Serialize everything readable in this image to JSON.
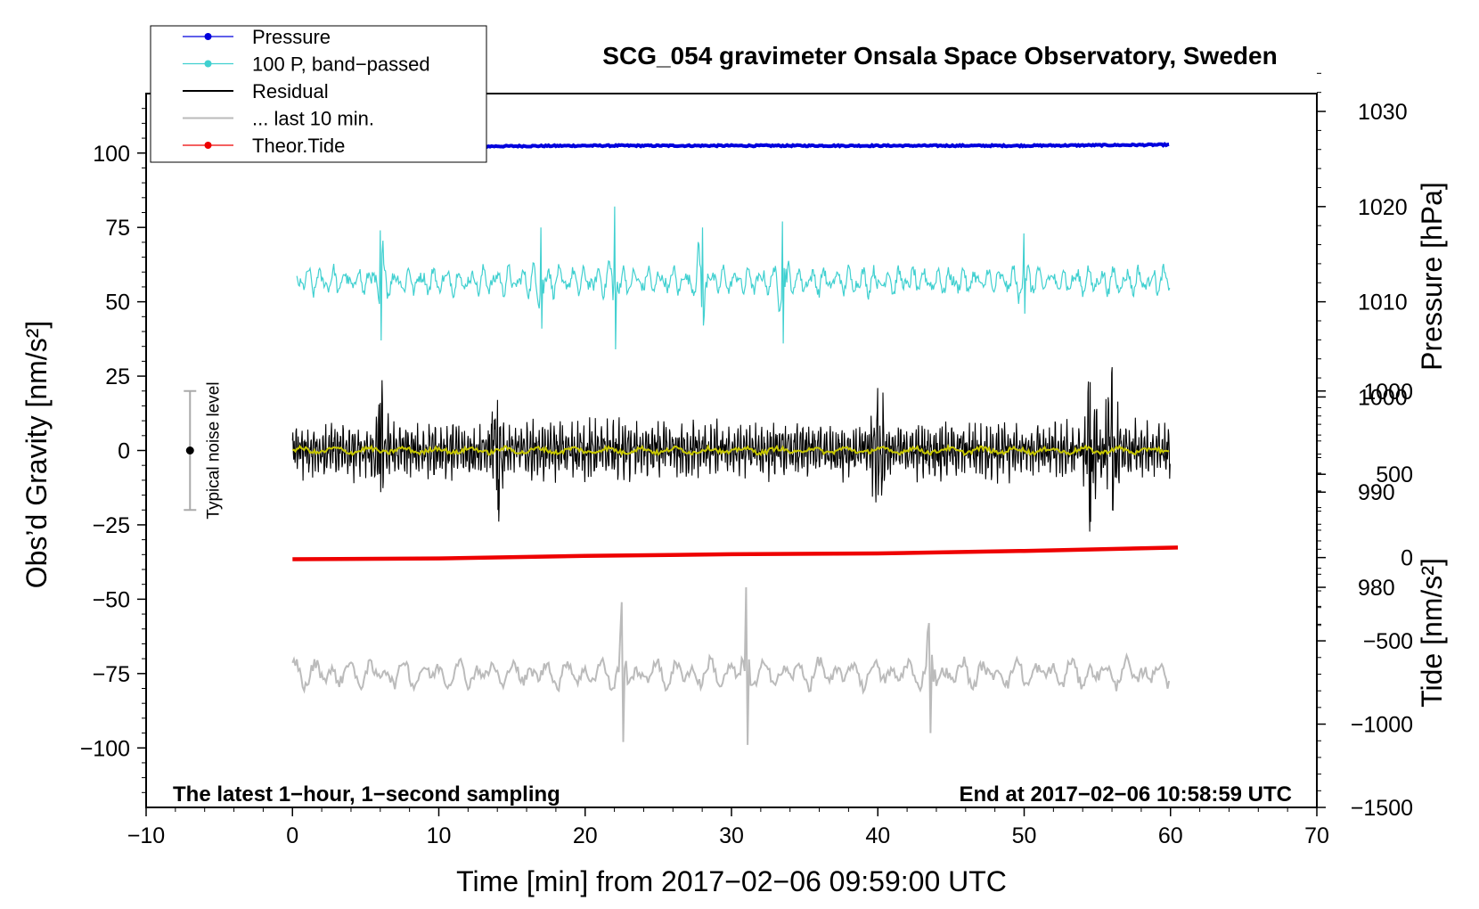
{
  "chart_data": {
    "type": "line",
    "title": "SCG_054 gravimeter Onsala Space Observatory, Sweden",
    "xlabel": "Time [min] from 2017−02−06 09:59:00 UTC",
    "ylabel_left": "Obs’d Gravity [nm/s²]",
    "ylabel_right_pressure": "Pressure [hPa]",
    "ylabel_right_tide": "Tide [nm/s²]",
    "xlim": [
      -10,
      70
    ],
    "ylim_left": [
      -120,
      120
    ],
    "x_ticks": [
      -10,
      0,
      10,
      20,
      30,
      40,
      50,
      60,
      70
    ],
    "x_tick_labels": [
      "−10",
      "0",
      "10",
      "20",
      "30",
      "40",
      "50",
      "60",
      "70"
    ],
    "y_left_ticks": [
      100,
      75,
      50,
      25,
      0,
      -25,
      -50,
      -75,
      -100
    ],
    "y_left_tick_labels": [
      "100",
      "75",
      "50",
      "25",
      "0",
      "−25",
      "−50",
      "−75",
      "−100"
    ],
    "pressure_axis": {
      "ticks": [
        1030,
        1020,
        1010,
        1000,
        990,
        980
      ],
      "tick_labels": [
        "1030",
        "1020",
        "1010",
        "1000",
        "990",
        "980"
      ],
      "range_hPa": [
        975,
        1035
      ],
      "maps_to_gravity": [
        -62,
        130
      ]
    },
    "tide_axis": {
      "ticks": [
        1000,
        500,
        0,
        -500,
        -1000,
        -1500
      ],
      "tick_labels": [
        "1000",
        "500",
        "0",
        "−500",
        "−1000",
        "−1500"
      ],
      "range": [
        -1500,
        1000
      ],
      "maps_to_gravity": [
        -120,
        20
      ]
    },
    "legend": [
      {
        "label": "Pressure",
        "color": "#0000dd",
        "marker": "dot"
      },
      {
        "label": "100 P, band−passed",
        "color": "#40d0d0",
        "marker": "dot"
      },
      {
        "label": "Residual",
        "color": "#000000",
        "marker": "none"
      },
      {
        "label": "... last 10 min.",
        "color": "#bbbbbb",
        "marker": "none"
      },
      {
        "label": "Theor.Tide",
        "color": "#ee0000",
        "marker": "dot"
      }
    ],
    "noise_level": {
      "label": "Typical noise level",
      "x": -7,
      "center": 0,
      "half_range": 20
    },
    "series": [
      {
        "name": "Pressure",
        "axis": "pressure",
        "color": "#0000dd",
        "x": [
          0,
          5,
          10,
          20,
          30,
          40,
          50,
          60
        ],
        "values": [
          1026.2,
          1026.2,
          1026.3,
          1026.4,
          1026.4,
          1026.4,
          1026.4,
          1026.5
        ]
      },
      {
        "name": "100 P, band-passed",
        "axis": "gravity",
        "color": "#40d0d0",
        "x_start": 0.3,
        "x_end": 60,
        "offset": 57,
        "amplitude": 5,
        "bursts": [
          {
            "x": 6,
            "peak": 74,
            "trough": 37
          },
          {
            "x": 17,
            "peak": 75,
            "trough": 41
          },
          {
            "x": 22,
            "peak": 82,
            "trough": 34
          },
          {
            "x": 28,
            "peak": 75,
            "trough": 42
          },
          {
            "x": 33.5,
            "peak": 77,
            "trough": 36
          },
          {
            "x": 50,
            "peak": 73,
            "trough": 46
          }
        ]
      },
      {
        "name": "Residual",
        "axis": "gravity",
        "color": "#000000",
        "x_start": 0,
        "x_end": 60,
        "offset": 0,
        "amplitude": 10,
        "extremes": [
          {
            "x": 6,
            "peak": 16,
            "trough": -14
          },
          {
            "x": 14,
            "peak": 17,
            "trough": -20
          },
          {
            "x": 40,
            "peak": 21,
            "trough": -15
          },
          {
            "x": 54.5,
            "peak": 23,
            "trough": -24
          },
          {
            "x": 56,
            "peak": 28,
            "trough": -20
          }
        ]
      },
      {
        "name": "Residual smoothed",
        "axis": "gravity",
        "color": "#c8c800",
        "x_start": 0,
        "x_end": 60,
        "offset": 0,
        "amplitude": 1.5
      },
      {
        "name": "... last 10 min.",
        "axis": "gravity",
        "color": "#bbbbbb",
        "x_start": 0,
        "x_end": 60,
        "offset": -75,
        "amplitude": 5,
        "bursts": [
          {
            "x": 22.5,
            "peak": -51,
            "trough": -98
          },
          {
            "x": 31,
            "peak": -46,
            "trough": -99
          },
          {
            "x": 43.5,
            "peak": -58,
            "trough": -95
          }
        ]
      },
      {
        "name": "Theor.Tide",
        "axis": "tide",
        "color": "#ee0000",
        "x": [
          0,
          10,
          20,
          30,
          40,
          50,
          60.5
        ],
        "values": [
          -10,
          -5,
          10,
          20,
          25,
          40,
          60
        ]
      }
    ],
    "annotations": {
      "bottom_left": "The latest 1−hour, 1−second sampling",
      "bottom_right": "End at 2017−02−06 10:58:59 UTC"
    }
  }
}
